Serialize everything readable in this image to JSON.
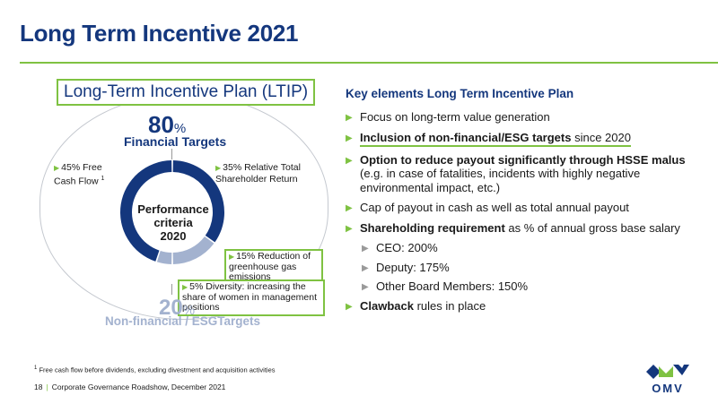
{
  "page": {
    "title": "Long Term Incentive 2021",
    "page_number": "18",
    "footer_text": "Corporate Governance Roadshow, December 2021",
    "footnote_marker": "1",
    "footnote_text": "Free cash flow before dividends, excluding divestment and acquisition activities",
    "logo_text": "OMV",
    "accent_color": "#7fc242",
    "brand_color": "#14377d"
  },
  "ltip": {
    "title": "Long-Term Incentive Plan (LTIP)",
    "financial_pct": "80",
    "financial_label": "Financial Targets",
    "esg_pct": "20",
    "esg_label": "Non-financial / ESGTargets",
    "pct_sign": "%",
    "center_label": [
      "Performance",
      "criteria",
      "2020"
    ],
    "segments": [
      {
        "label": "45% Free Cash Flow",
        "footnote": "1",
        "value": 45,
        "color": "#14377d"
      },
      {
        "label": "35% Relative Total Shareholder Return",
        "value": 35,
        "color": "#14377d"
      },
      {
        "label": "15% Reduction of greenhouse gas emissions",
        "value": 15,
        "color": "#a3b2cf"
      },
      {
        "label": "5% Diversity: increasing the share of women in management positions",
        "value": 5,
        "color": "#a3b2cf"
      }
    ]
  },
  "key_elements": {
    "title": "Key elements Long Term Incentive Plan",
    "items": [
      {
        "text": "Focus on long-term value generation"
      },
      {
        "bold": "Inclusion of non-financial/ESG targets",
        "text": " since 2020"
      },
      {
        "bold": "Option to reduce payout significantly through HSSE malus",
        "text": " (e.g. in case of fatalities, incidents with highly negative environmental impact, etc.)"
      },
      {
        "text": "Cap of payout in cash as well as total annual payout"
      },
      {
        "bold": "Shareholding requirement",
        "text": " as % of annual gross base salary"
      },
      {
        "bold": "Clawback",
        "text": " rules in place"
      }
    ],
    "sub_items": [
      "CEO: 200%",
      "Deputy: 175%",
      "Other Board Members: 150%"
    ]
  }
}
